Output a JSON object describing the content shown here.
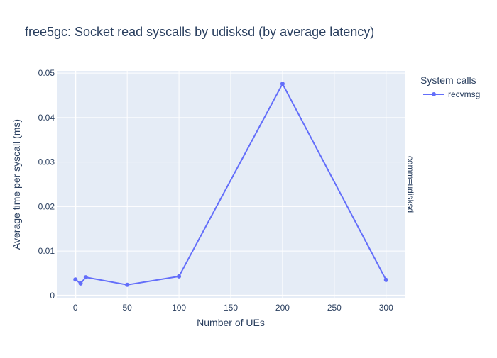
{
  "chart_data": {
    "type": "line",
    "title": "free5gc: Socket read syscalls by udisksd (by average latency)",
    "xlabel": "Number of UEs",
    "ylabel": "Average time per syscall (ms)",
    "facet_label": "comm=udisksd",
    "legend_title": "System calls",
    "legend_position": "top-right",
    "grid": true,
    "xlim": [
      -18,
      318
    ],
    "ylim": [
      -0.0005,
      0.0505
    ],
    "x_ticks": [
      0,
      50,
      100,
      150,
      200,
      250,
      300
    ],
    "y_ticks": [
      0,
      0.01,
      0.02,
      0.03,
      0.04,
      0.05
    ],
    "x_tick_labels": [
      "0",
      "50",
      "100",
      "150",
      "200",
      "250",
      "300"
    ],
    "y_tick_labels": [
      "0",
      "0.01",
      "0.02",
      "0.03",
      "0.04",
      "0.05"
    ],
    "series": [
      {
        "name": "recvmsg",
        "color": "#636efa",
        "x": [
          0,
          5,
          10,
          50,
          100,
          200,
          300
        ],
        "y": [
          0.0036,
          0.0027,
          0.0041,
          0.0024,
          0.0043,
          0.0476,
          0.0035
        ]
      }
    ],
    "colors": {
      "plot_bg": "#e5ecf6",
      "grid": "#ffffff",
      "text": "#2a3f5f",
      "tick_text": "#2a3f5f"
    }
  }
}
